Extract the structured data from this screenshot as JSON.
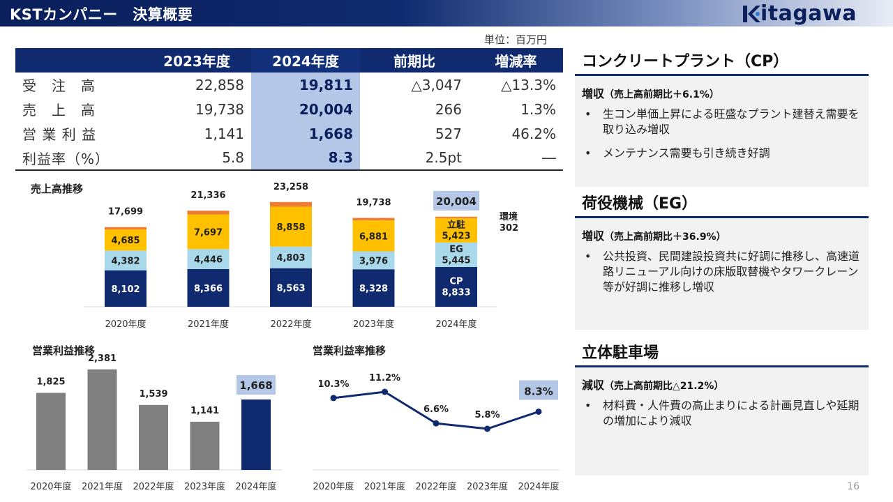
{
  "header": {
    "title": "KSTカンパニー　決算概要",
    "logo_text_bold": "itagawa",
    "logo_text": "",
    "logo_letter": "K"
  },
  "unit": "単位：百万円",
  "summary": {
    "headers": [
      "",
      "2023年度",
      "2024年度",
      "前期比",
      "増減率"
    ],
    "rows": [
      [
        "受　注　高",
        "22,858",
        "19,811",
        "△3,047",
        "△13.3%"
      ],
      [
        "売　上　高",
        "19,738",
        "20,004",
        "266",
        "1.3%"
      ],
      [
        "営 業 利 益",
        "1,141",
        "1,668",
        "527",
        "46.2%"
      ],
      [
        "利益率（%）",
        "5.8",
        "8.3",
        "2.5pt",
        "―"
      ]
    ]
  },
  "chart_data": [
    {
      "type": "bar",
      "stacked": true,
      "title": "売上高推移",
      "categories": [
        "2020年度",
        "2021年度",
        "2022年度",
        "2023年度",
        "2024年度"
      ],
      "series": [
        {
          "name": "CP",
          "values": [
            8102,
            8366,
            8563,
            8328,
            8833
          ],
          "color": "#0f2a6e"
        },
        {
          "name": "EG",
          "values": [
            4382,
            4446,
            4803,
            3976,
            5445
          ],
          "color": "#a8d8ea"
        },
        {
          "name": "立駐",
          "values": [
            4685,
            7697,
            8858,
            6881,
            5423
          ],
          "color": "#ffc000"
        },
        {
          "name": "環境",
          "values": [
            530,
            827,
            1034,
            553,
            302
          ],
          "color": "#ed7d31"
        }
      ],
      "totals": [
        17699,
        21336,
        23258,
        19738,
        20004
      ],
      "display_totals": [
        "17,699",
        "21,336",
        "23,258",
        "19,738",
        "20,004"
      ],
      "display_values": {
        "CP": [
          "8,102",
          "8,366",
          "8,563",
          "8,328",
          "8,833"
        ],
        "EG": [
          "4,382",
          "4,446",
          "4,803",
          "3,976",
          "5,445"
        ],
        "立駐": [
          "4,685",
          "7,697",
          "8,858",
          "6,881",
          "5,423"
        ],
        "環境": [
          "",
          "",
          "",
          "",
          "302"
        ]
      },
      "highlight_index": 4,
      "ylim": [
        0,
        24000
      ]
    },
    {
      "type": "bar",
      "title": "営業利益推移",
      "categories": [
        "2020年度",
        "2021年度",
        "2022年度",
        "2023年度",
        "2024年度"
      ],
      "values": [
        1825,
        2381,
        1539,
        1141,
        1668
      ],
      "display_values": [
        "1,825",
        "2,381",
        "1,539",
        "1,141",
        "1,668"
      ],
      "colors": [
        "#808080",
        "#808080",
        "#808080",
        "#808080",
        "#0f2a6e"
      ],
      "highlight_index": 4,
      "ylim": [
        0,
        2600
      ]
    },
    {
      "type": "line",
      "title": "営業利益率推移",
      "categories": [
        "2020年度",
        "2021年度",
        "2022年度",
        "2023年度",
        "2024年度"
      ],
      "values": [
        10.3,
        11.2,
        6.6,
        5.8,
        8.3
      ],
      "display_values": [
        "10.3%",
        "11.2%",
        "6.6%",
        "5.8%",
        "8.3%"
      ],
      "color": "#0f2a6e",
      "highlight_index": 4,
      "ylim": [
        0,
        14
      ]
    }
  ],
  "panels": [
    {
      "title": "コンクリートプラント（CP）",
      "sub_main": "増収",
      "sub_detail": "（売上高前期比＋6.1%）",
      "bullets": [
        "生コン単価上昇による旺盛なプラント建替え需要を取り込み増収",
        "メンテナンス需要も引き続き好調"
      ]
    },
    {
      "title": "荷役機械（EG）",
      "sub_main": "増収",
      "sub_detail": "（売上高前期比＋36.9%）",
      "bullets": [
        "公共投資、民間建設投資共に好調に推移し、高速道路リニューアル向けの床版取替機やタワークレーン等が好調に推移し増収"
      ]
    },
    {
      "title": "立体駐車場",
      "sub_main": "減収",
      "sub_detail": "（売上高前期比△21.2%）",
      "bullets": [
        "材料費・人件費の高止まりによる計画見直しや延期の増加により減収"
      ]
    }
  ],
  "page_number": "16"
}
